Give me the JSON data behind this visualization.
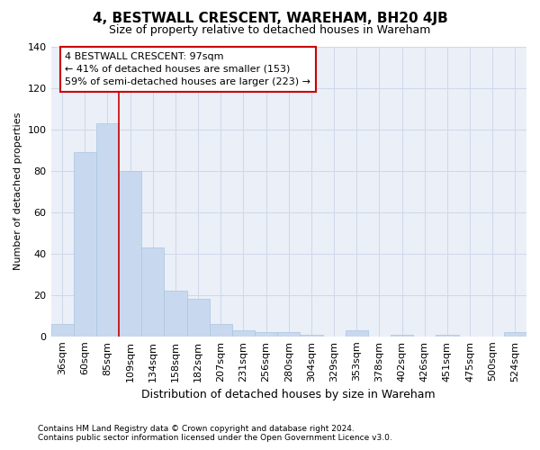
{
  "title": "4, BESTWALL CRESCENT, WAREHAM, BH20 4JB",
  "subtitle": "Size of property relative to detached houses in Wareham",
  "xlabel": "Distribution of detached houses by size in Wareham",
  "ylabel": "Number of detached properties",
  "categories": [
    "36sqm",
    "60sqm",
    "85sqm",
    "109sqm",
    "134sqm",
    "158sqm",
    "182sqm",
    "207sqm",
    "231sqm",
    "256sqm",
    "280sqm",
    "304sqm",
    "329sqm",
    "353sqm",
    "378sqm",
    "402sqm",
    "426sqm",
    "451sqm",
    "475sqm",
    "500sqm",
    "524sqm"
  ],
  "values": [
    6,
    89,
    103,
    80,
    43,
    22,
    18,
    6,
    3,
    2,
    2,
    1,
    0,
    3,
    0,
    1,
    0,
    1,
    0,
    0,
    2
  ],
  "bar_color": "#c8d9ef",
  "bar_edge_color": "#aac4e0",
  "background_color": "#eaeff8",
  "grid_color": "#d0d8e8",
  "ylim": [
    0,
    140
  ],
  "yticks": [
    0,
    20,
    40,
    60,
    80,
    100,
    120,
    140
  ],
  "vline_x": 2.5,
  "vline_color": "#cc0000",
  "annotation_title": "4 BESTWALL CRESCENT: 97sqm",
  "annotation_line1": "← 41% of detached houses are smaller (153)",
  "annotation_line2": "59% of semi-detached houses are larger (223) →",
  "annotation_box_color": "#ffffff",
  "annotation_box_edge": "#cc0000",
  "footnote1": "Contains HM Land Registry data © Crown copyright and database right 2024.",
  "footnote2": "Contains public sector information licensed under the Open Government Licence v3.0.",
  "title_fontsize": 11,
  "subtitle_fontsize": 9,
  "ylabel_fontsize": 8,
  "xlabel_fontsize": 9,
  "tick_fontsize": 8,
  "annot_fontsize": 8,
  "footnote_fontsize": 6.5
}
